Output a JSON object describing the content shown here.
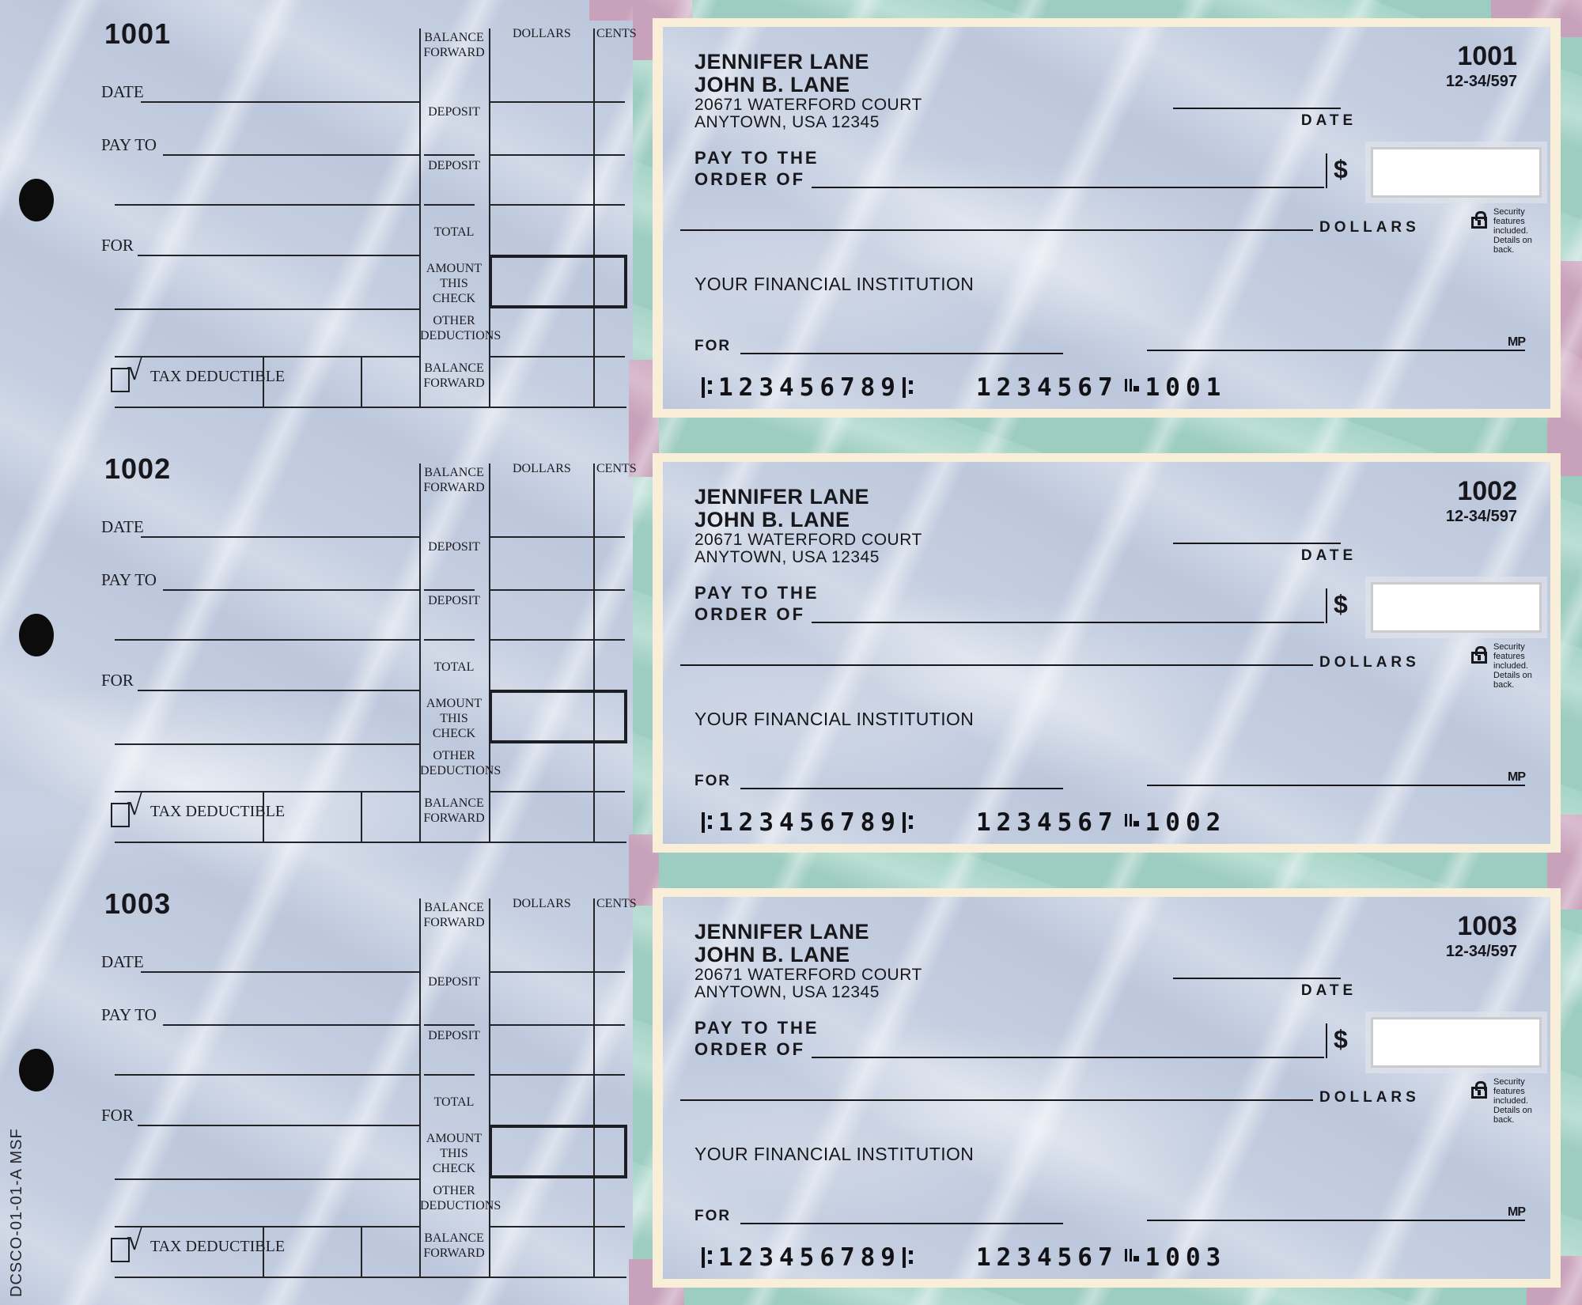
{
  "page": {
    "vertical_code": "DCSCO-01-01-A  MSF",
    "colors": {
      "stub_marble": "#c5cfe1",
      "backdrop_teal": "#a6d4c7",
      "backdrop_pink": "#d0abc3",
      "check_border_cream": "#f9eed7",
      "ink": "#1c1c22"
    }
  },
  "stub": {
    "date_label": "DATE",
    "pay_to_label": "PAY TO",
    "for_label": "FOR",
    "tax_check_glyph": "√",
    "tax_label": "TAX DEDUCTIBLE",
    "ledger": {
      "dollars_header": "DOLLARS",
      "cents_header": "CENTS",
      "row_balance_forward_top": "BALANCE FORWARD",
      "row_deposit_1": "DEPOSIT",
      "row_deposit_2": "DEPOSIT",
      "row_total": "TOTAL",
      "row_amount_this_check": "AMOUNT THIS CHECK",
      "row_other_deductions": "OTHER DEDUCTIONS",
      "row_balance_forward_bottom": "BALANCE FORWARD"
    }
  },
  "check": {
    "payor_name_1": "JENNIFER LANE",
    "payor_name_2": "JOHN B. LANE",
    "address_1": "20671 WATERFORD COURT",
    "address_2": "ANYTOWN, USA 12345",
    "fraction": "12-34/597",
    "date_label": "DATE",
    "pay_to_the": "PAY TO THE",
    "order_of": "ORDER OF",
    "dollar_sign": "$",
    "dollars_label": "DOLLARS",
    "security_line_1": "Security features",
    "security_line_2": "included.",
    "security_line_3": "Details on back.",
    "institution": "YOUR FINANCIAL INSTITUTION",
    "for_label": "FOR",
    "mp_mark": "MP",
    "micr_routing": "123456789",
    "micr_account": "1234567"
  },
  "checks": [
    {
      "number": "1001"
    },
    {
      "number": "1002"
    },
    {
      "number": "1003"
    }
  ]
}
